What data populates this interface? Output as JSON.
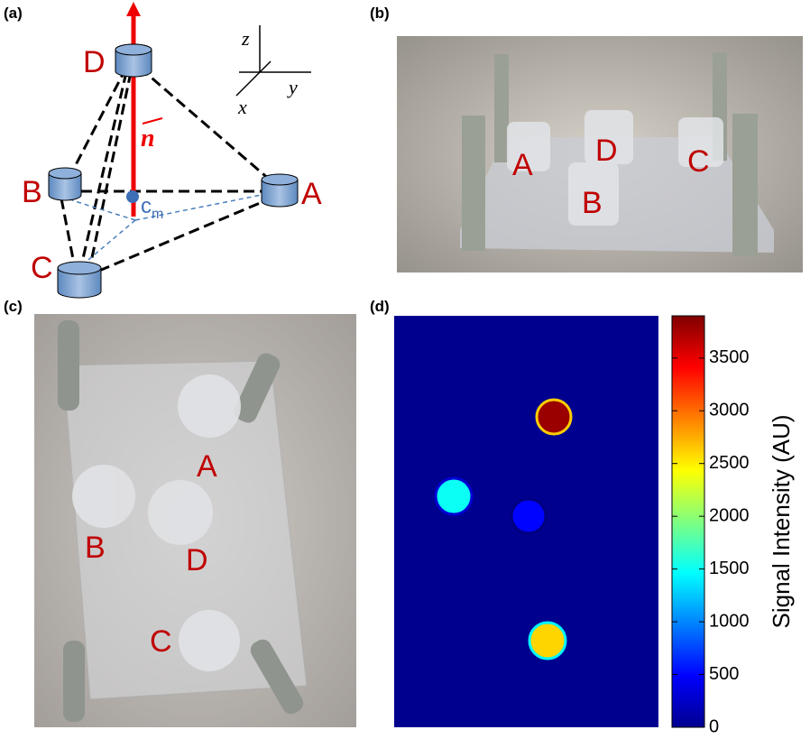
{
  "panel_a": {
    "label": "(a)",
    "D": "D",
    "B": "B",
    "A": "A",
    "C": "C",
    "n": "n",
    "cm": "c",
    "cm_sub": "m",
    "x": "x",
    "y": "y",
    "z": "z"
  },
  "panel_b": {
    "label": "(b)",
    "A": "A",
    "D": "D",
    "C": "C",
    "B": "B"
  },
  "panel_c": {
    "label": "(c)",
    "A": "A",
    "B": "B",
    "D": "D",
    "C": "C"
  },
  "panel_d": {
    "label": "(d)",
    "colorbar": {
      "label": "Signal Intensity (AU)",
      "lim": [
        0,
        3900
      ],
      "ticks": [
        0,
        500,
        1000,
        1500,
        2000,
        2500,
        3000,
        3500
      ]
    },
    "spots": [
      3800,
      1500,
      500,
      2600
    ]
  }
}
